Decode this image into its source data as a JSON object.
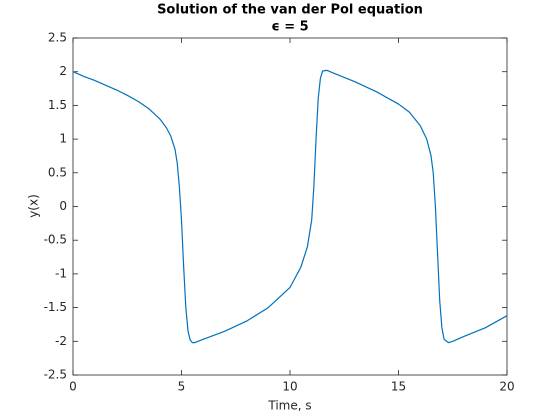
{
  "chart_data": {
    "type": "line",
    "title": "Solution of the van der Pol equation",
    "subtitle": "ϵ = 5",
    "x_label": "Time, s",
    "y_label": "y(x)",
    "x": [
      0,
      0.5,
      1,
      1.5,
      2,
      2.5,
      3,
      3.5,
      4,
      4.3,
      4.5,
      4.7,
      4.8,
      4.9,
      5.0,
      5.1,
      5.2,
      5.3,
      5.4,
      5.5,
      5.6,
      6,
      7,
      8,
      9,
      10,
      10.5,
      10.8,
      11,
      11.1,
      11.2,
      11.3,
      11.4,
      11.5,
      11.7,
      12,
      13,
      14,
      15,
      15.5,
      16,
      16.3,
      16.5,
      16.6,
      16.7,
      16.8,
      16.9,
      17.0,
      17.1,
      17.3,
      17.5,
      18,
      19,
      20
    ],
    "values": [
      2.0,
      1.93,
      1.87,
      1.8,
      1.73,
      1.65,
      1.56,
      1.45,
      1.3,
      1.17,
      1.05,
      0.85,
      0.65,
      0.3,
      -0.2,
      -0.9,
      -1.5,
      -1.85,
      -1.98,
      -2.02,
      -2.02,
      -1.97,
      -1.85,
      -1.7,
      -1.5,
      -1.2,
      -0.9,
      -0.6,
      -0.2,
      0.3,
      1.0,
      1.6,
      1.9,
      2.01,
      2.02,
      1.98,
      1.85,
      1.7,
      1.52,
      1.4,
      1.2,
      1.0,
      0.75,
      0.5,
      0.0,
      -0.7,
      -1.4,
      -1.8,
      -1.97,
      -2.02,
      -2.0,
      -1.93,
      -1.8,
      -1.62
    ],
    "color": "#0072bd",
    "xlim": [
      0,
      20
    ],
    "xticks": [
      0,
      5,
      10,
      15,
      20
    ],
    "ylim": [
      -2.5,
      2.5
    ],
    "yticks": [
      -2.5,
      -2,
      -1.5,
      -1,
      -0.5,
      0,
      0.5,
      1,
      1.5,
      2,
      2.5
    ]
  }
}
